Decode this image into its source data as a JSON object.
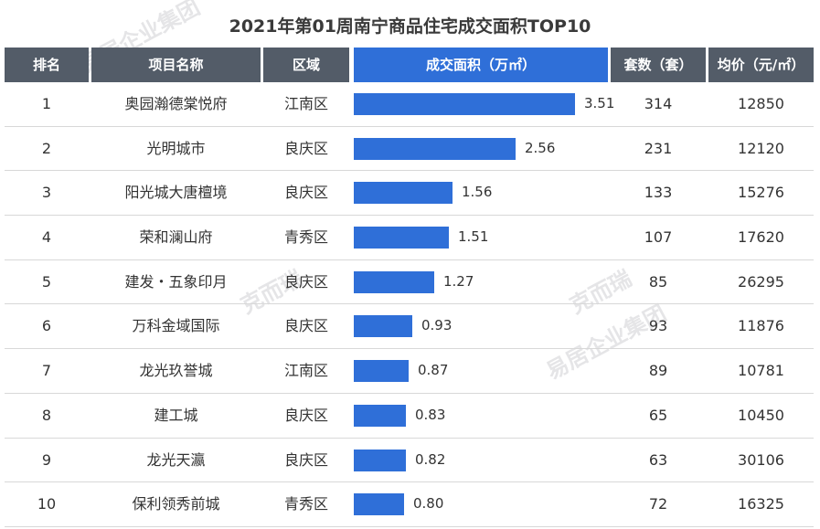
{
  "title": "2021年第01周南宁商品住宅成交面积TOP10",
  "watermarks": [
    "易居企业集团",
    "克而瑞",
    "易居企业集团",
    "克而瑞"
  ],
  "header": {
    "rank": "排名",
    "project": "项目名称",
    "district": "区域",
    "area": "成交面积（万㎡）",
    "units": "套数（套）",
    "price": "均价（元/㎡）"
  },
  "colors": {
    "header_bg": "#535c68",
    "accent": "#2f6fd8"
  },
  "chart_data": {
    "type": "table",
    "title": "2021年第01周南宁商品住宅成交面积TOP10",
    "columns": [
      "排名",
      "项目名称",
      "区域",
      "成交面积（万㎡）",
      "套数（套）",
      "均价（元/㎡）"
    ],
    "bar_column": "成交面积（万㎡）",
    "xlim": [
      0,
      3.51
    ],
    "rows": [
      {
        "rank": "1",
        "project": "奥园瀚德棠悦府",
        "district": "江南区",
        "area": 3.51,
        "area_label": "3.51",
        "units": "314",
        "price": "12850"
      },
      {
        "rank": "2",
        "project": "光明城市",
        "district": "良庆区",
        "area": 2.56,
        "area_label": "2.56",
        "units": "231",
        "price": "12120"
      },
      {
        "rank": "3",
        "project": "阳光城大唐檀境",
        "district": "良庆区",
        "area": 1.56,
        "area_label": "1.56",
        "units": "133",
        "price": "15276"
      },
      {
        "rank": "4",
        "project": "荣和澜山府",
        "district": "青秀区",
        "area": 1.51,
        "area_label": "1.51",
        "units": "107",
        "price": "17620"
      },
      {
        "rank": "5",
        "project": "建发・五象印月",
        "district": "良庆区",
        "area": 1.27,
        "area_label": "1.27",
        "units": "85",
        "price": "26295"
      },
      {
        "rank": "6",
        "project": "万科金域国际",
        "district": "良庆区",
        "area": 0.93,
        "area_label": "0.93",
        "units": "93",
        "price": "11876"
      },
      {
        "rank": "7",
        "project": "龙光玖誉城",
        "district": "江南区",
        "area": 0.87,
        "area_label": "0.87",
        "units": "89",
        "price": "10781"
      },
      {
        "rank": "8",
        "project": "建工城",
        "district": "良庆区",
        "area": 0.83,
        "area_label": "0.83",
        "units": "65",
        "price": "10450"
      },
      {
        "rank": "9",
        "project": "龙光天瀛",
        "district": "良庆区",
        "area": 0.82,
        "area_label": "0.82",
        "units": "63",
        "price": "30106"
      },
      {
        "rank": "10",
        "project": "保利领秀前城",
        "district": "青秀区",
        "area": 0.8,
        "area_label": "0.80",
        "units": "72",
        "price": "16325"
      }
    ]
  }
}
